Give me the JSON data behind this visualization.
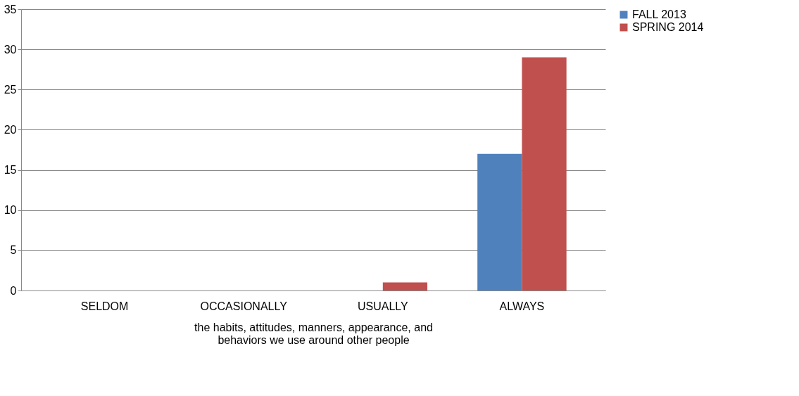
{
  "chart_data": {
    "type": "bar",
    "xlabel": "the habits, attitudes, manners, appearance, and behaviors we use around other people",
    "categories": [
      "SELDOM",
      "OCCASIONALLY",
      "USUALLY",
      "ALWAYS"
    ],
    "series": [
      {
        "name": "FALL 2013",
        "color": "#4f81bd",
        "values": [
          0,
          0,
          0,
          17
        ]
      },
      {
        "name": "SPRING 2014",
        "color": "#c0504d",
        "values": [
          0,
          0,
          1,
          29
        ]
      }
    ],
    "ylim": [
      0,
      35
    ],
    "yticks": [
      0,
      5,
      10,
      15,
      20,
      25,
      30,
      35
    ],
    "grid": "y",
    "legend": "right"
  }
}
